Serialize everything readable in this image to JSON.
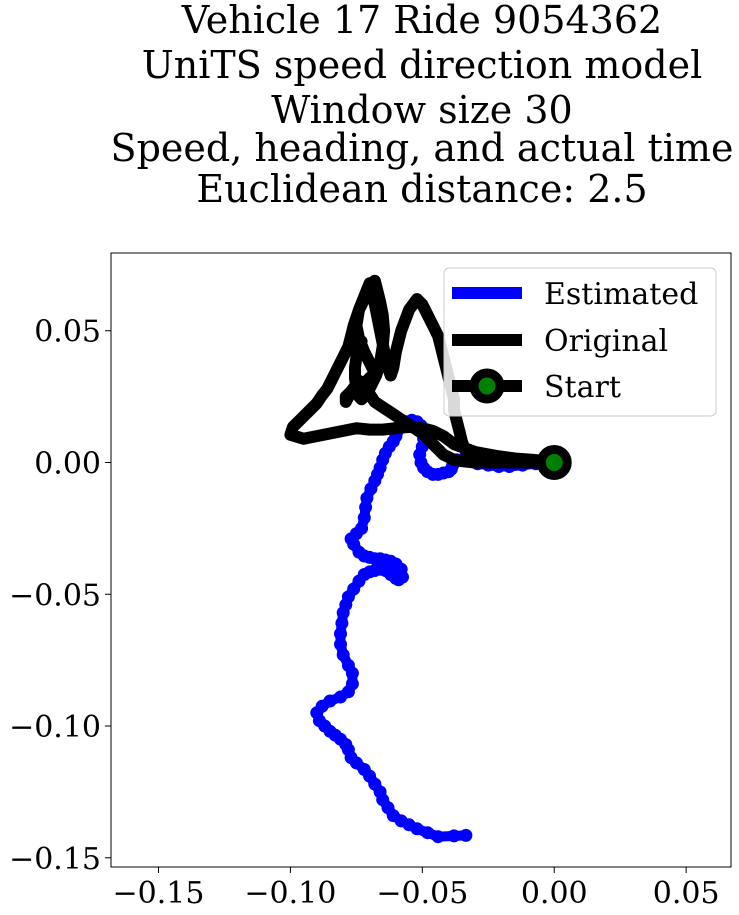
{
  "chart_data": {
    "type": "line",
    "title": [
      "Vehicle 17 Ride 9054362",
      "UniTS speed direction model",
      "Window size 30",
      "Speed, heading, and actual time",
      "Euclidean distance: 2.5"
    ],
    "xlabel": "",
    "ylabel": "",
    "xlim": [
      -0.168,
      0.067
    ],
    "ylim": [
      -0.1535,
      0.0795
    ],
    "xticks": [
      -0.15,
      -0.1,
      -0.05,
      0.0,
      0.05
    ],
    "xtick_labels": [
      "−0.15",
      "−0.10",
      "−0.05",
      "0.00",
      "0.05"
    ],
    "yticks": [
      0.05,
      0.0,
      -0.05,
      -0.1,
      -0.15
    ],
    "ytick_labels": [
      "0.05",
      "0.00",
      "−0.05",
      "−0.10",
      "−0.15"
    ],
    "grid": false,
    "legend_position": "top-right",
    "series": [
      {
        "name": "Estimated",
        "color": "#0000ff",
        "marker": "circle",
        "x": [
          -0.0335,
          -0.038,
          -0.044,
          -0.048,
          -0.052,
          -0.055,
          -0.058,
          -0.061,
          -0.063,
          -0.065,
          -0.066,
          -0.068,
          -0.07,
          -0.072,
          -0.075,
          -0.077,
          -0.078,
          -0.079,
          -0.081,
          -0.083,
          -0.085,
          -0.087,
          -0.089,
          -0.09,
          -0.088,
          -0.085,
          -0.081,
          -0.078,
          -0.0765,
          -0.0765,
          -0.078,
          -0.08,
          -0.081,
          -0.081,
          -0.0805,
          -0.08,
          -0.079,
          -0.078,
          -0.076,
          -0.074,
          -0.072,
          -0.07,
          -0.068,
          -0.066,
          -0.064,
          -0.062,
          -0.06,
          -0.059,
          -0.0575,
          -0.058,
          -0.06,
          -0.062,
          -0.064,
          -0.066,
          -0.068,
          -0.07,
          -0.072,
          -0.074,
          -0.076,
          -0.077,
          -0.075,
          -0.073,
          -0.072,
          -0.0715,
          -0.071,
          -0.0695,
          -0.068,
          -0.067,
          -0.066,
          -0.065,
          -0.064,
          -0.0625,
          -0.061,
          -0.06,
          -0.0595,
          -0.059,
          -0.058,
          -0.056,
          -0.054,
          -0.052,
          -0.0505,
          -0.05,
          -0.0495,
          -0.05,
          -0.051,
          -0.0505,
          -0.0495,
          -0.048,
          -0.046,
          -0.044,
          -0.042,
          -0.04,
          -0.039,
          -0.0385,
          -0.0385,
          -0.037,
          -0.035,
          -0.032,
          -0.029,
          -0.025,
          -0.021,
          -0.017,
          -0.012,
          -0.007,
          -0.003,
          0.0
        ],
        "y": [
          -0.1415,
          -0.1417,
          -0.142,
          -0.1405,
          -0.139,
          -0.1375,
          -0.136,
          -0.134,
          -0.131,
          -0.128,
          -0.125,
          -0.122,
          -0.119,
          -0.1165,
          -0.114,
          -0.112,
          -0.109,
          -0.107,
          -0.105,
          -0.1035,
          -0.102,
          -0.1,
          -0.098,
          -0.095,
          -0.0925,
          -0.0905,
          -0.089,
          -0.087,
          -0.084,
          -0.08,
          -0.077,
          -0.073,
          -0.069,
          -0.065,
          -0.061,
          -0.057,
          -0.054,
          -0.051,
          -0.048,
          -0.045,
          -0.0425,
          -0.0415,
          -0.041,
          -0.0405,
          -0.041,
          -0.0425,
          -0.044,
          -0.0445,
          -0.0435,
          -0.0405,
          -0.0385,
          -0.0375,
          -0.037,
          -0.0365,
          -0.0365,
          -0.036,
          -0.0355,
          -0.034,
          -0.031,
          -0.029,
          -0.027,
          -0.025,
          -0.021,
          -0.017,
          -0.0135,
          -0.01,
          -0.007,
          -0.0045,
          -0.002,
          0.001,
          0.0035,
          0.006,
          0.008,
          0.01,
          0.012,
          0.0135,
          0.0145,
          0.0155,
          0.016,
          0.0155,
          0.014,
          0.0115,
          0.009,
          0.006,
          0.003,
          0.0,
          -0.002,
          -0.0035,
          -0.0045,
          -0.0045,
          -0.004,
          -0.0035,
          -0.0025,
          -0.001,
          0.0005,
          0.001,
          0.001,
          0.0005,
          -0.0005,
          -0.001,
          -0.0015,
          -0.0015,
          -0.001,
          -0.0005,
          0.0,
          0.0
        ]
      },
      {
        "name": "Original",
        "color": "#000000",
        "marker": "none",
        "x": [
          0.0,
          -0.005,
          -0.01,
          -0.015,
          -0.02,
          -0.025,
          -0.03,
          -0.035,
          -0.038,
          -0.04,
          -0.042,
          -0.044,
          -0.046,
          -0.048,
          -0.05,
          -0.053,
          -0.056,
          -0.059,
          -0.062,
          -0.065,
          -0.068,
          -0.07,
          -0.072,
          -0.074,
          -0.077,
          -0.079,
          -0.079,
          -0.076,
          -0.071,
          -0.068,
          -0.07,
          -0.072,
          -0.074,
          -0.075,
          -0.074,
          -0.072,
          -0.07,
          -0.069,
          -0.068,
          -0.067,
          -0.066,
          -0.065,
          -0.064,
          -0.063,
          -0.062,
          -0.061,
          -0.06,
          -0.058,
          -0.055,
          -0.052,
          -0.05,
          -0.048,
          -0.046,
          -0.044,
          -0.043,
          -0.042,
          -0.041,
          -0.04,
          -0.039,
          -0.038,
          -0.038,
          -0.037,
          -0.036,
          -0.035,
          -0.034,
          -0.032,
          -0.03,
          -0.025,
          -0.02,
          -0.015,
          -0.01,
          -0.005,
          0.0,
          -0.003,
          -0.008,
          -0.015,
          -0.022,
          -0.03,
          -0.038,
          -0.042,
          -0.046,
          -0.05,
          -0.055,
          -0.06,
          -0.065,
          -0.07,
          -0.075,
          -0.08,
          -0.085,
          -0.09,
          -0.095,
          -0.1,
          -0.099,
          -0.096,
          -0.093,
          -0.09,
          -0.088,
          -0.086,
          -0.084,
          -0.082,
          -0.08,
          -0.078,
          -0.077,
          -0.076,
          -0.075,
          -0.074,
          -0.0725,
          -0.07,
          -0.068,
          -0.067,
          -0.066,
          -0.065,
          -0.0645,
          -0.065,
          -0.066,
          -0.0675,
          -0.069,
          -0.0705,
          -0.072,
          -0.073,
          -0.074,
          -0.075,
          -0.0755,
          -0.0755,
          -0.075,
          -0.074,
          -0.073
        ],
        "y": [
          0.0,
          0.0,
          0.0,
          0.0,
          0.0,
          0.0,
          0.0,
          0.0005,
          0.001,
          0.002,
          0.003,
          0.005,
          0.007,
          0.009,
          0.011,
          0.013,
          0.015,
          0.017,
          0.019,
          0.021,
          0.023,
          0.026,
          0.029,
          0.031,
          0.027,
          0.023,
          0.025,
          0.028,
          0.031,
          0.034,
          0.038,
          0.042,
          0.047,
          0.052,
          0.058,
          0.063,
          0.068,
          0.065,
          0.06,
          0.055,
          0.05,
          0.045,
          0.04,
          0.036,
          0.033,
          0.036,
          0.042,
          0.05,
          0.058,
          0.062,
          0.06,
          0.056,
          0.052,
          0.048,
          0.044,
          0.04,
          0.036,
          0.032,
          0.028,
          0.024,
          0.02,
          0.016,
          0.012,
          0.008,
          0.005,
          0.003,
          0.002,
          0.001,
          0.0005,
          0.0,
          0.0,
          0.0,
          0.0,
          0.0005,
          0.001,
          0.0015,
          0.0025,
          0.004,
          0.007,
          0.01,
          0.012,
          0.013,
          0.0135,
          0.013,
          0.0125,
          0.0125,
          0.013,
          0.012,
          0.011,
          0.01,
          0.009,
          0.0105,
          0.0135,
          0.0165,
          0.0195,
          0.0225,
          0.0255,
          0.028,
          0.032,
          0.036,
          0.04,
          0.044,
          0.048,
          0.052,
          0.055,
          0.058,
          0.061,
          0.066,
          0.069,
          0.065,
          0.061,
          0.056,
          0.05,
          0.044,
          0.038,
          0.033,
          0.03,
          0.027,
          0.025,
          0.024,
          0.025,
          0.028,
          0.032,
          0.036,
          0.04,
          0.043,
          0.046
        ]
      },
      {
        "name": "Start",
        "color": "#000000",
        "marker_face_color": "#008000",
        "marker": "circle",
        "x": [
          0.0
        ],
        "y": [
          0.0
        ]
      }
    ]
  }
}
